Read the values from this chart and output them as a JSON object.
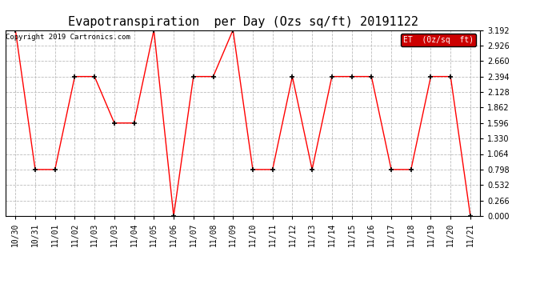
{
  "title": "Evapotranspiration  per Day (Ozs sq/ft) 20191122",
  "copyright": "Copyright 2019 Cartronics.com",
  "legend_label": "ET  (0z/sq  ft)",
  "x_labels": [
    "10/30",
    "10/31",
    "11/01",
    "11/02",
    "11/03",
    "11/03",
    "11/04",
    "11/05",
    "11/06",
    "11/07",
    "11/08",
    "11/09",
    "11/10",
    "11/11",
    "11/12",
    "11/13",
    "11/14",
    "11/15",
    "11/16",
    "11/17",
    "11/18",
    "11/19",
    "11/20",
    "11/21"
  ],
  "y_values": [
    3.192,
    0.798,
    0.798,
    2.394,
    2.394,
    1.596,
    1.596,
    3.192,
    0.0,
    2.394,
    2.394,
    3.192,
    0.798,
    0.798,
    2.394,
    0.798,
    2.394,
    2.394,
    2.394,
    0.798,
    0.798,
    2.394,
    2.394,
    0.0
  ],
  "line_color": "red",
  "marker_color": "black",
  "background_color": "#ffffff",
  "grid_color": "#bbbbbb",
  "ylim": [
    0.0,
    3.192
  ],
  "yticks": [
    0.0,
    0.266,
    0.532,
    0.798,
    1.064,
    1.33,
    1.596,
    1.862,
    2.128,
    2.394,
    2.66,
    2.926,
    3.192
  ],
  "title_fontsize": 11,
  "tick_fontsize": 7,
  "legend_bg": "#cc0000",
  "legend_text_color": "#ffffff",
  "copyright_fontsize": 6.5
}
